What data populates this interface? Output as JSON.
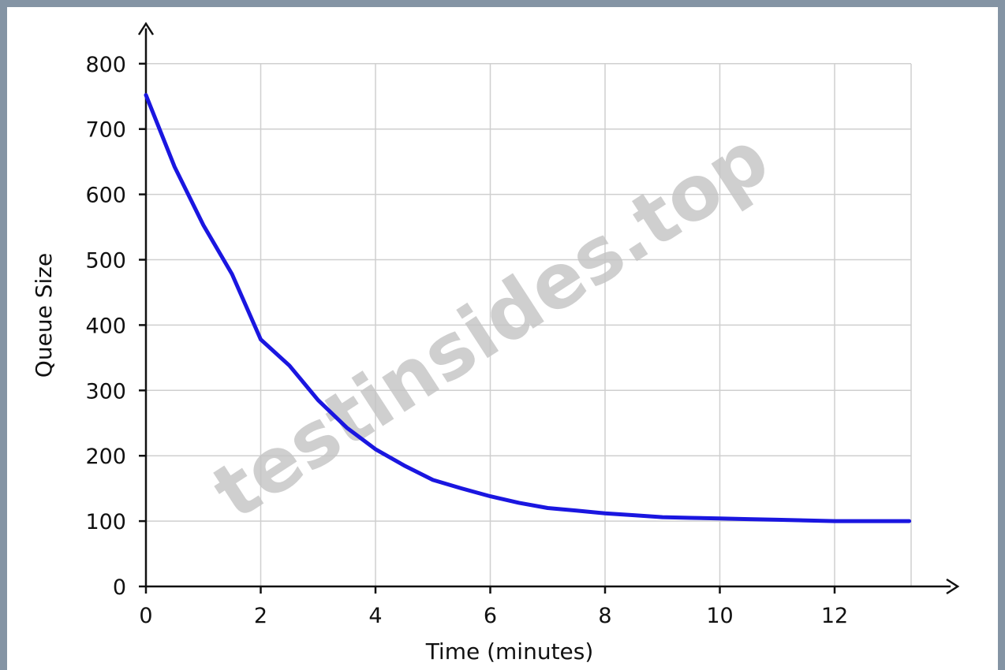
{
  "watermark": "testinsides.top",
  "chart_data": {
    "type": "line",
    "title": "",
    "xlabel": "Time (minutes)",
    "ylabel": "Queue Size",
    "xlim": [
      0,
      13.3
    ],
    "ylim": [
      0,
      800
    ],
    "xticks": [
      0,
      2,
      4,
      6,
      8,
      10,
      12
    ],
    "yticks": [
      0,
      100,
      200,
      300,
      400,
      500,
      600,
      700,
      800
    ],
    "grid": true,
    "series": [
      {
        "color": "#1a16e0",
        "x": [
          0,
          0.5,
          1,
          1.5,
          2,
          2.5,
          3,
          3.5,
          4,
          4.5,
          5,
          5.5,
          6,
          6.5,
          7,
          7.5,
          8,
          8.5,
          9,
          9.5,
          10,
          10.5,
          11,
          11.5,
          12,
          12.5,
          13,
          13.3
        ],
        "y": [
          752,
          642,
          553,
          478,
          378,
          338,
          285,
          243,
          210,
          185,
          163,
          150,
          138,
          128,
          120,
          116,
          112,
          109,
          106,
          105,
          104,
          103,
          102,
          101,
          100,
          100,
          100,
          100
        ]
      }
    ]
  }
}
